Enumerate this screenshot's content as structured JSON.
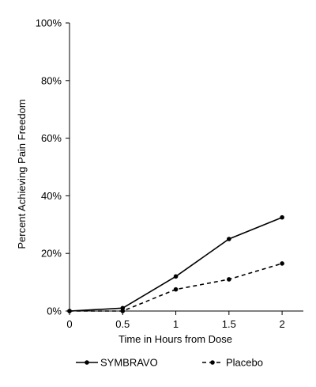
{
  "chart_data": {
    "type": "line",
    "title": "",
    "xlabel": "Time in Hours from Dose",
    "ylabel": "Percent Achieving Pain Freedom",
    "x": [
      0,
      0.5,
      1,
      1.5,
      2
    ],
    "x_tick_labels": [
      "0",
      "0.5",
      "1",
      "1.5",
      "2"
    ],
    "xlim": [
      0,
      2.2
    ],
    "ylim": [
      0,
      100
    ],
    "y_ticks": [
      0,
      20,
      40,
      60,
      80,
      100
    ],
    "y_tick_labels": [
      "0%",
      "20%",
      "40%",
      "60%",
      "80%",
      "100%"
    ],
    "grid": false,
    "legend_position": "bottom",
    "series": [
      {
        "name": "SYMBRAVO",
        "values": [
          0,
          1,
          12,
          25,
          32.5
        ],
        "style": "solid",
        "marker": "circle",
        "color": "#000000"
      },
      {
        "name": "Placebo",
        "values": [
          0,
          0,
          7.5,
          11,
          16.5
        ],
        "style": "dashed",
        "marker": "circle",
        "color": "#000000"
      }
    ]
  }
}
